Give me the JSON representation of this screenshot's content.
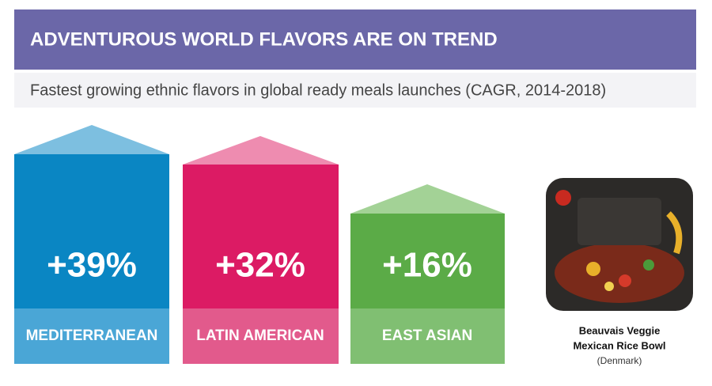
{
  "header": {
    "title": "ADVENTUROUS WORLD FLAVORS ARE ON TREND",
    "subtitle": "Fastest growing ethnic flavors in global ready meals launches (CAGR, 2014-2018)"
  },
  "columns": [
    {
      "value": "+39%",
      "label": "MEDITERRANEAN"
    },
    {
      "value": "+32%",
      "label": "LATIN AMERICAN"
    },
    {
      "value": "+16%",
      "label": "EAST ASIAN"
    }
  ],
  "product": {
    "name_line1": "Beauvais Veggie",
    "name_line2": "Mexican Rice Bowl",
    "country": "(Denmark)"
  }
}
